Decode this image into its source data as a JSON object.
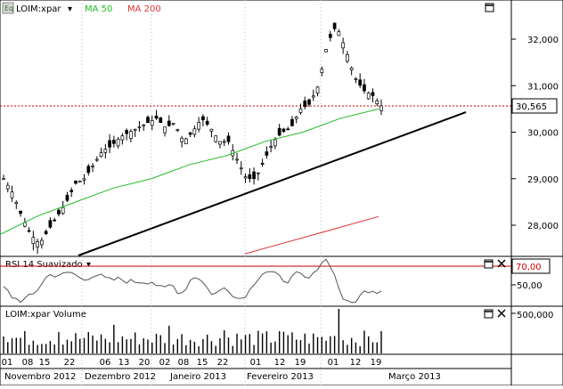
{
  "price_panel": {
    "symbol_icon": "Eq",
    "symbol": "LOIM:xpar",
    "ma50_label": "MA 50",
    "ma200_label": "MA 200",
    "ma50_color": "#22bb22",
    "ma200_color": "#dd3333",
    "price_color": "#000000",
    "y_ticks": [
      "32,000",
      "31,000",
      "30,000",
      "29,000",
      "28,000"
    ],
    "y_tick_values": [
      32000,
      31000,
      30000,
      29000,
      28000
    ],
    "last_price_label": "30,565",
    "last_price": 30565,
    "reference_line_color": "#cc0000"
  },
  "rsi_panel": {
    "title": "RSI 14 Suavizado",
    "y_ticks": [
      "70,00",
      "50,00"
    ],
    "overbought_level": 70,
    "level_color": "#cc0000"
  },
  "volume_panel": {
    "title": "LOIM:xpar Volume",
    "y_ticks": [
      "500,000"
    ]
  },
  "x_axis": {
    "days": [
      "01",
      "08",
      "15",
      "22",
      "06",
      "13",
      "20",
      "02",
      "08",
      "15",
      "22",
      "01",
      "12",
      "19",
      "01",
      "12",
      "19"
    ],
    "months": [
      "Novembro 2012",
      "Dezembro 2012",
      "Janeiro 2013",
      "Fevereiro 2013",
      "Março 2013"
    ]
  },
  "icons": {
    "price_window": "maximize-icon",
    "rsi_window": "maximize-icon",
    "rsi_close": "close-icon",
    "volume_window": "maximize-icon",
    "volume_close": "close-icon",
    "rsi_menu": "dropdown-arrow-icon",
    "symbol_menu": "dropdown-arrow-icon"
  },
  "chart_data": {
    "type": "line",
    "series": [
      {
        "name": "LOIM:xpar",
        "x_index": [
          0,
          10,
          20,
          30,
          40,
          50,
          60,
          70,
          80,
          90,
          100,
          110,
          120,
          130,
          140,
          150,
          160,
          170,
          180,
          190,
          200,
          210,
          220,
          230,
          240,
          250,
          260,
          270,
          280,
          290,
          300,
          310,
          320,
          330,
          340,
          350,
          360,
          370,
          380,
          390,
          400,
          410,
          420
        ],
        "values": [
          29000,
          28700,
          28200,
          27800,
          27600,
          27900,
          28200,
          28500,
          28900,
          29000,
          29300,
          29600,
          29700,
          29900,
          30000,
          30100,
          30200,
          30300,
          30100,
          30200,
          29800,
          30000,
          30300,
          30100,
          29800,
          29800,
          29400,
          29000,
          29000,
          29400,
          29800,
          30000,
          30100,
          30500,
          30600,
          31000,
          31900,
          32300,
          31800,
          31200,
          30900,
          30800,
          30565
        ]
      },
      {
        "name": "MA 50",
        "values": [
          27800,
          28200,
          28500,
          28800,
          29000,
          29300,
          29500,
          29800,
          30000,
          30300,
          30500
        ]
      },
      {
        "name": "MA 200",
        "values": [
          27500,
          27700,
          27900,
          28100,
          28300
        ]
      }
    ],
    "ylim": [
      27300,
      32800
    ]
  }
}
